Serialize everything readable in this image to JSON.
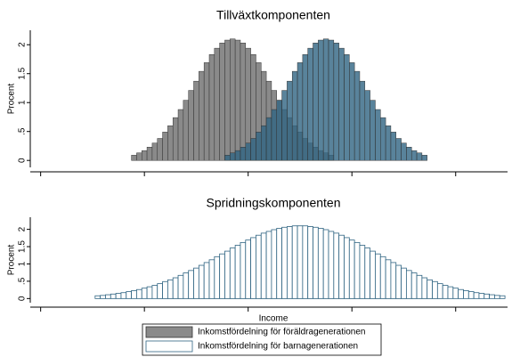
{
  "chart_data": [
    {
      "type": "histogram",
      "title": "Tillväxtkomponenten",
      "y_label": "Procent",
      "xlim": [
        -0.1,
        4.5
      ],
      "xticks": [
        0,
        1,
        2,
        3,
        4
      ],
      "ylim": [
        -0.12,
        2.25
      ],
      "yticks": [
        0,
        {
          "value": 0.5,
          "label": ".5"
        },
        1,
        1.5,
        2
      ],
      "grid": false,
      "series": [
        {
          "color": "#8a8a8a",
          "fill": true,
          "bins": [
            0.875,
            0.925,
            0.975,
            1.025,
            1.075,
            1.125,
            1.175,
            1.225,
            1.275,
            1.325,
            1.375,
            1.425,
            1.475,
            1.525,
            1.575,
            1.625,
            1.675,
            1.725,
            1.775,
            1.825,
            1.875,
            1.925,
            1.975,
            2.025,
            2.075,
            2.125,
            2.175,
            2.225,
            2.275,
            2.325,
            2.375,
            2.425,
            2.475,
            2.525,
            2.575,
            2.625,
            2.675,
            2.725,
            2.775,
            2.825
          ],
          "values": [
            0.09,
            0.13,
            0.17,
            0.23,
            0.3,
            0.38,
            0.49,
            0.6,
            0.74,
            0.88,
            1.04,
            1.21,
            1.37,
            1.54,
            1.69,
            1.83,
            1.94,
            2.03,
            2.08,
            2.1,
            2.08,
            2.03,
            1.94,
            1.83,
            1.69,
            1.54,
            1.37,
            1.21,
            1.04,
            0.88,
            0.74,
            0.6,
            0.49,
            0.38,
            0.3,
            0.23,
            0.17,
            0.13,
            0.09
          ]
        },
        {
          "color": "#2f6482",
          "fill": true,
          "bins": [
            1.775,
            1.825,
            1.875,
            1.925,
            1.975,
            2.025,
            2.075,
            2.125,
            2.175,
            2.225,
            2.275,
            2.325,
            2.375,
            2.425,
            2.475,
            2.525,
            2.575,
            2.625,
            2.675,
            2.725,
            2.775,
            2.825,
            2.875,
            2.925,
            2.975,
            3.025,
            3.075,
            3.125,
            3.175,
            3.225,
            3.275,
            3.325,
            3.375,
            3.425,
            3.475,
            3.525,
            3.575,
            3.625,
            3.675,
            3.725
          ],
          "values": [
            0.09,
            0.13,
            0.17,
            0.23,
            0.3,
            0.38,
            0.49,
            0.6,
            0.74,
            0.88,
            1.04,
            1.21,
            1.37,
            1.54,
            1.69,
            1.83,
            1.94,
            2.03,
            2.08,
            2.1,
            2.08,
            2.03,
            1.94,
            1.83,
            1.69,
            1.54,
            1.37,
            1.21,
            1.04,
            0.88,
            0.74,
            0.6,
            0.49,
            0.38,
            0.3,
            0.23,
            0.17,
            0.13,
            0.09
          ]
        }
      ]
    },
    {
      "type": "histogram",
      "title": "Spridningskomponenten",
      "y_label": "Procent",
      "x_label": "Income",
      "xlim": [
        -0.1,
        4.5
      ],
      "xticks": [
        0,
        1,
        2,
        3,
        4
      ],
      "ylim": [
        -0.12,
        2.35
      ],
      "yticks": [
        0,
        {
          "value": 0.5,
          "label": ".5"
        },
        1,
        1.5,
        2
      ],
      "grid": false,
      "legend": "bottom",
      "series": [
        {
          "name": "Inkomstfördelning för föräldragenerationen",
          "color": "#8a8a8a",
          "fill": true,
          "bins": [
            1.135,
            1.205,
            1.275,
            1.345,
            1.415,
            1.485,
            1.555,
            1.625,
            1.695,
            1.765,
            1.835,
            1.905,
            1.975,
            2.045,
            2.115,
            2.185,
            2.255,
            2.325,
            2.395,
            2.465,
            2.535,
            2.605,
            2.675,
            2.745,
            2.815,
            2.885,
            2.955,
            3.025,
            3.095,
            3.165,
            3.235,
            3.305,
            3.375,
            3.445,
            3.515,
            3.585,
            3.655,
            3.725,
            3.795,
            3.865
          ],
          "values": [
            0.09,
            0.13,
            0.17,
            0.23,
            0.3,
            0.38,
            0.49,
            0.6,
            0.74,
            0.88,
            1.04,
            1.21,
            1.37,
            1.54,
            1.69,
            1.83,
            1.94,
            2.03,
            2.08,
            2.1,
            2.08,
            2.03,
            1.94,
            1.83,
            1.69,
            1.54,
            1.37,
            1.21,
            1.04,
            0.88,
            0.74,
            0.6,
            0.49,
            0.38,
            0.3,
            0.23,
            0.17,
            0.13,
            0.09
          ]
        },
        {
          "name": "Inkomstfördelning för barnagenerationen",
          "color": "#2f6482",
          "fill": false,
          "bins": [
            0.525,
            0.575,
            0.625,
            0.675,
            0.725,
            0.775,
            0.825,
            0.875,
            0.925,
            0.975,
            1.025,
            1.075,
            1.125,
            1.175,
            1.225,
            1.275,
            1.325,
            1.375,
            1.425,
            1.475,
            1.525,
            1.575,
            1.625,
            1.675,
            1.725,
            1.775,
            1.825,
            1.875,
            1.925,
            1.975,
            2.025,
            2.075,
            2.125,
            2.175,
            2.225,
            2.275,
            2.325,
            2.375,
            2.425,
            2.475,
            2.525,
            2.575,
            2.625,
            2.675,
            2.725,
            2.775,
            2.825,
            2.875,
            2.925,
            2.975,
            3.025,
            3.075,
            3.125,
            3.175,
            3.225,
            3.275,
            3.325,
            3.375,
            3.425,
            3.475,
            3.525,
            3.575,
            3.625,
            3.675,
            3.725,
            3.775,
            3.825,
            3.875,
            3.925,
            3.975,
            4.025,
            4.075,
            4.125,
            4.175,
            4.225,
            4.275,
            4.325,
            4.375,
            4.425,
            4.475
          ],
          "values": [
            0.08,
            0.09,
            0.11,
            0.13,
            0.15,
            0.17,
            0.2,
            0.23,
            0.26,
            0.3,
            0.34,
            0.38,
            0.43,
            0.49,
            0.54,
            0.6,
            0.67,
            0.74,
            0.81,
            0.88,
            0.96,
            1.04,
            1.12,
            1.21,
            1.29,
            1.37,
            1.46,
            1.54,
            1.62,
            1.69,
            1.76,
            1.83,
            1.89,
            1.94,
            1.99,
            2.03,
            2.06,
            2.08,
            2.1,
            2.1,
            2.1,
            2.08,
            2.06,
            2.03,
            1.99,
            1.94,
            1.89,
            1.83,
            1.76,
            1.69,
            1.62,
            1.54,
            1.46,
            1.37,
            1.29,
            1.21,
            1.12,
            1.04,
            0.96,
            0.88,
            0.81,
            0.74,
            0.67,
            0.6,
            0.54,
            0.49,
            0.43,
            0.38,
            0.34,
            0.3,
            0.26,
            0.23,
            0.2,
            0.17,
            0.15,
            0.13,
            0.11,
            0.09,
            0.08
          ]
        }
      ]
    }
  ]
}
